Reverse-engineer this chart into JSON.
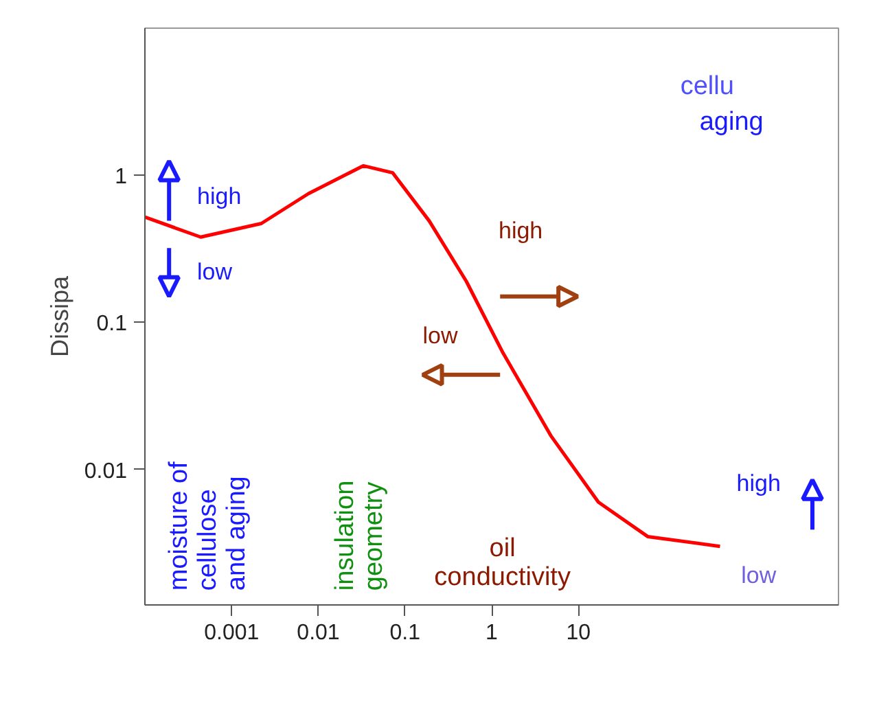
{
  "chart_data": {
    "type": "line",
    "ylabel": "Dissipa",
    "x": [
      0.0001,
      0.00044,
      0.0022,
      0.0077,
      0.033,
      0.072,
      0.19,
      0.51,
      1.33,
      4.8,
      17,
      63,
      430
    ],
    "series": [
      {
        "color": "#ff0000",
        "values": [
          0.52,
          0.38,
          0.47,
          0.75,
          1.16,
          1.04,
          0.49,
          0.19,
          0.063,
          0.017,
          0.006,
          0.0035,
          0.003
        ]
      }
    ],
    "log": "xy",
    "xlim": [
      0.0001,
      10000
    ],
    "ylim": [
      0.0012,
      10
    ],
    "xticks": [
      0.001,
      0.01,
      0.1,
      1,
      10
    ],
    "yticks": [
      0.01,
      0.1,
      1
    ],
    "grid": false,
    "marker": "none",
    "line_style": "solid",
    "annotations": [
      "high",
      "low",
      "high",
      "low",
      "moisture of\ncellulose\nand aging",
      "insulation\ngeometry",
      "oil\nconductivity",
      "high",
      "low",
      "cellu",
      "aging"
    ]
  }
}
